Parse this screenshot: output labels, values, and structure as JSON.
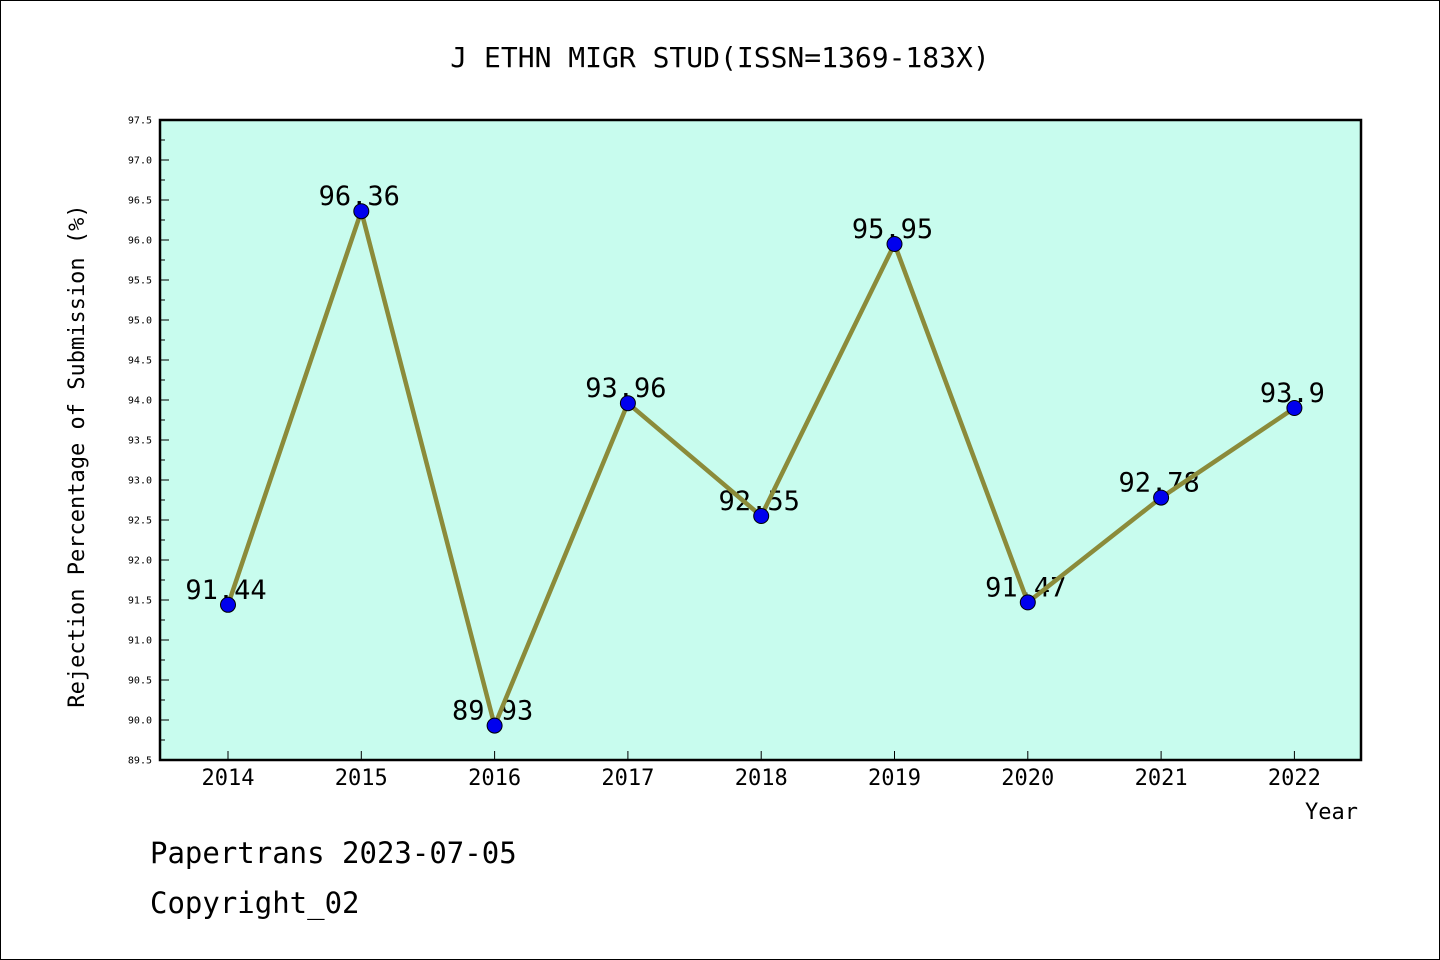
{
  "chart_data": {
    "type": "line",
    "title": "J ETHN MIGR STUD(ISSN=1369-183X)",
    "xlabel": "Year",
    "ylabel": "Rejection Percentage of Submission (%)",
    "categories": [
      "2014",
      "2015",
      "2016",
      "2017",
      "2018",
      "2019",
      "2020",
      "2021",
      "2022"
    ],
    "values": [
      91.44,
      96.36,
      89.93,
      93.96,
      92.55,
      95.95,
      91.47,
      92.78,
      93.9
    ],
    "data_labels": [
      "91.44",
      "96.36",
      "89.93",
      "93.96",
      "92.55",
      "95.95",
      "91.47",
      "92.78",
      "93.9"
    ],
    "ylim": [
      89.5,
      97.5
    ],
    "y_ticks": [
      "89.5",
      "90.0",
      "90.5",
      "91.0",
      "91.5",
      "92.0",
      "92.5",
      "93.0",
      "93.5",
      "94.0",
      "94.5",
      "95.0",
      "95.5",
      "96.0",
      "96.5",
      "97.0",
      "97.5"
    ],
    "grid": false,
    "legend": "none",
    "colors": {
      "plot_background": "#c8fcee",
      "line": "#8b8b3a",
      "marker": "#0000ee"
    }
  },
  "footer": {
    "line1": "Papertrans 2023-07-05",
    "line2": "Copyright_02"
  }
}
